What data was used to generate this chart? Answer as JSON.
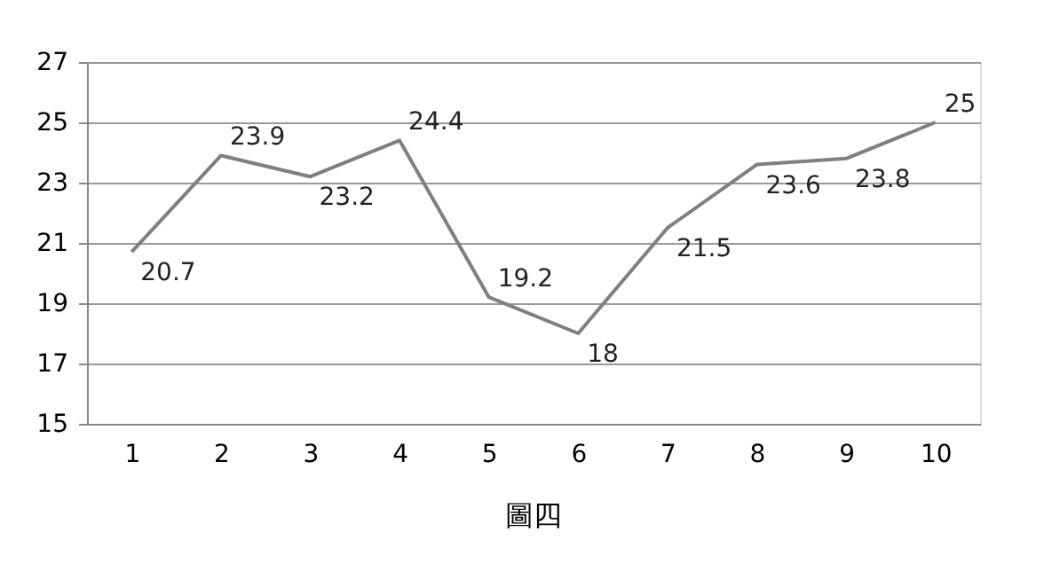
{
  "chart_data": {
    "type": "line",
    "title": "圖四",
    "categories": [
      "1",
      "2",
      "3",
      "4",
      "5",
      "6",
      "7",
      "8",
      "9",
      "10"
    ],
    "series": [
      {
        "color": "#7f7f7f",
        "values": [
          20.7,
          23.9,
          23.2,
          24.4,
          19.2,
          18,
          21.5,
          23.6,
          23.8,
          25
        ]
      }
    ],
    "ylim": [
      15,
      27
    ],
    "yticks": [
      15,
      17,
      19,
      21,
      23,
      25,
      27
    ],
    "grid": "y",
    "data_labels": true,
    "marker": "none",
    "line_style": "solid",
    "legend": false
  }
}
